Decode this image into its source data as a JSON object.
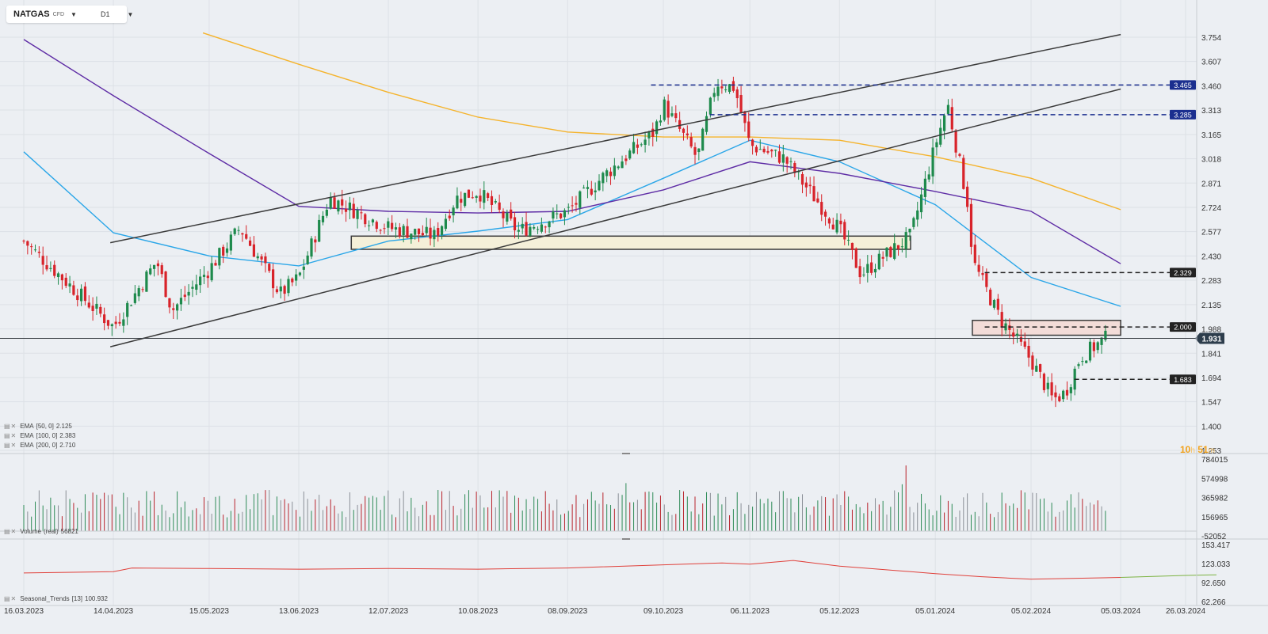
{
  "header": {
    "symbol": "NATGAS",
    "instrument_type": "CFD",
    "timeframe": "D1"
  },
  "countdown": {
    "hours": "10",
    "h_unit": "h",
    "minutes": "51",
    "m_unit": "m"
  },
  "indicators": {
    "ema50": {
      "label": "EMA",
      "params": "[50, 0]",
      "value": "2.125",
      "color": "#2aa6e8"
    },
    "ema100": {
      "label": "EMA",
      "params": "[100, 0]",
      "value": "2.383",
      "color": "#5e2ca5"
    },
    "ema200": {
      "label": "EMA",
      "params": "[200, 0]",
      "value": "2.710",
      "color": "#f5b32b"
    },
    "volume": {
      "label": "Volume",
      "params": "(real)",
      "value": "56821"
    },
    "seasonal": {
      "label": "Seasonal_Trends",
      "params": "[13]",
      "value": "100.932"
    }
  },
  "chart_data": [
    {
      "type": "candlestick",
      "instrument": "NATGAS",
      "timeframe": "D1",
      "ylim": [
        1.253,
        3.754
      ],
      "y_ticks": [
        "3.754",
        "3.607",
        "3.460",
        "3.313",
        "3.165",
        "3.018",
        "2.871",
        "2.724",
        "2.577",
        "2.430",
        "2.283",
        "2.135",
        "1.988",
        "1.841",
        "1.694",
        "1.547",
        "1.400",
        "1.253"
      ],
      "x_ticks": [
        "16.03.2023",
        "14.04.2023",
        "15.05.2023",
        "13.06.2023",
        "12.07.2023",
        "10.08.2023",
        "08.09.2023",
        "09.10.2023",
        "06.11.2023",
        "05.12.2023",
        "05.01.2024",
        "05.02.2024",
        "05.03.2024",
        "26.03.2024"
      ],
      "current_price": "1.931",
      "price_levels": [
        {
          "label": "3.465",
          "value": 3.465,
          "style": "dashed",
          "color": "#1b2f8f"
        },
        {
          "label": "3.285",
          "value": 3.285,
          "style": "dashed",
          "color": "#1b2f8f"
        },
        {
          "label": "2.329",
          "value": 2.329,
          "style": "dashed",
          "color": "#222222"
        },
        {
          "label": "2.000",
          "value": 2.0,
          "style": "dashed",
          "color": "#222222"
        },
        {
          "label": "1.683",
          "value": 1.683,
          "style": "dashed",
          "color": "#222222"
        }
      ],
      "channel": {
        "upper": [
          [
            "13.04.2023",
            2.51
          ],
          [
            "05.03.2024",
            3.77
          ]
        ],
        "lower": [
          [
            "13.04.2023",
            1.88
          ],
          [
            "05.03.2024",
            3.44
          ]
        ]
      },
      "zones": [
        {
          "from": "30.06.2023",
          "to": "28.12.2023",
          "low": 2.47,
          "high": 2.55,
          "color": "#f5f0d9"
        },
        {
          "from": "17.01.2024",
          "to": "05.03.2024",
          "low": 1.95,
          "high": 2.04,
          "color": "#f3dcd8"
        }
      ],
      "close_series_key_points": [
        [
          "16.03.2023",
          2.52
        ],
        [
          "14.04.2023",
          2.0
        ],
        [
          "28.04.2023",
          2.4
        ],
        [
          "03.05.2023",
          2.1
        ],
        [
          "15.05.2023",
          2.35
        ],
        [
          "25.05.2023",
          2.6
        ],
        [
          "07.06.2023",
          2.2
        ],
        [
          "13.06.2023",
          2.3
        ],
        [
          "23.06.2023",
          2.78
        ],
        [
          "12.07.2023",
          2.6
        ],
        [
          "27.07.2023",
          2.55
        ],
        [
          "03.08.2023",
          2.78
        ],
        [
          "10.08.2023",
          2.82
        ],
        [
          "23.08.2023",
          2.58
        ],
        [
          "08.09.2023",
          2.7
        ],
        [
          "20.09.2023",
          2.92
        ],
        [
          "06.10.2023",
          3.18
        ],
        [
          "09.10.2023",
          3.35
        ],
        [
          "20.10.2023",
          3.02
        ],
        [
          "26.10.2023",
          3.48
        ],
        [
          "01.11.2023",
          3.45
        ],
        [
          "06.11.2023",
          3.1
        ],
        [
          "17.11.2023",
          3.02
        ],
        [
          "05.12.2023",
          2.59
        ],
        [
          "12.12.2023",
          2.32
        ],
        [
          "28.12.2023",
          2.55
        ],
        [
          "05.01.2024",
          3.1
        ],
        [
          "09.01.2024",
          3.35
        ],
        [
          "16.01.2024",
          2.7
        ],
        [
          "17.01.2024",
          2.4
        ],
        [
          "26.01.2024",
          2.05
        ],
        [
          "05.02.2024",
          1.8
        ],
        [
          "12.02.2024",
          1.56
        ],
        [
          "16.02.2024",
          1.6
        ],
        [
          "21.02.2024",
          1.82
        ],
        [
          "29.02.2024",
          1.93
        ]
      ],
      "ema_series": [
        {
          "name": "EMA [50, 0]",
          "color": "#2aa6e8",
          "points": [
            [
              "16.03.2023",
              3.06
            ],
            [
              "14.04.2023",
              2.57
            ],
            [
              "15.05.2023",
              2.43
            ],
            [
              "13.06.2023",
              2.37
            ],
            [
              "12.07.2023",
              2.52
            ],
            [
              "10.08.2023",
              2.58
            ],
            [
              "08.09.2023",
              2.65
            ],
            [
              "09.10.2023",
              2.9
            ],
            [
              "06.11.2023",
              3.13
            ],
            [
              "05.12.2023",
              3.0
            ],
            [
              "05.01.2024",
              2.74
            ],
            [
              "05.02.2024",
              2.3
            ],
            [
              "05.03.2024",
              2.125
            ]
          ]
        },
        {
          "name": "EMA [100, 0]",
          "color": "#5e2ca5",
          "points": [
            [
              "16.03.2023",
              3.74
            ],
            [
              "14.04.2023",
              3.4
            ],
            [
              "15.05.2023",
              3.05
            ],
            [
              "13.06.2023",
              2.73
            ],
            [
              "12.07.2023",
              2.7
            ],
            [
              "10.08.2023",
              2.69
            ],
            [
              "08.09.2023",
              2.7
            ],
            [
              "09.10.2023",
              2.83
            ],
            [
              "06.11.2023",
              3.0
            ],
            [
              "05.12.2023",
              2.93
            ],
            [
              "05.01.2024",
              2.82
            ],
            [
              "05.02.2024",
              2.7
            ],
            [
              "05.03.2024",
              2.383
            ]
          ]
        },
        {
          "name": "EMA [200, 0]",
          "color": "#f5b32b",
          "points": [
            [
              "13.05.2023",
              3.78
            ],
            [
              "13.06.2023",
              3.59
            ],
            [
              "12.07.2023",
              3.42
            ],
            [
              "10.08.2023",
              3.27
            ],
            [
              "08.09.2023",
              3.18
            ],
            [
              "09.10.2023",
              3.15
            ],
            [
              "06.11.2023",
              3.15
            ],
            [
              "05.12.2023",
              3.13
            ],
            [
              "05.01.2024",
              3.03
            ],
            [
              "05.02.2024",
              2.9
            ],
            [
              "05.03.2024",
              2.71
            ]
          ]
        }
      ]
    },
    {
      "type": "bar",
      "title": "Volume (real)",
      "ylim": [
        -52052,
        784015
      ],
      "y_ticks": [
        "784015",
        "574998",
        "365982",
        "156965",
        "-52052"
      ],
      "last_value": 56821
    },
    {
      "type": "line",
      "title": "Seasonal_Trends [13]",
      "ylim": [
        62.266,
        153.417
      ],
      "y_ticks": [
        "153.417",
        "123.033",
        "92.650",
        "62.266"
      ],
      "points": [
        [
          "16.03.2023",
          108
        ],
        [
          "14.04.2023",
          110
        ],
        [
          "20.04.2023",
          116
        ],
        [
          "15.05.2023",
          115
        ],
        [
          "13.06.2023",
          114
        ],
        [
          "12.07.2023",
          115
        ],
        [
          "10.08.2023",
          114
        ],
        [
          "08.09.2023",
          116
        ],
        [
          "09.10.2023",
          121
        ],
        [
          "28.10.2023",
          124
        ],
        [
          "06.11.2023",
          122
        ],
        [
          "20.11.2023",
          128
        ],
        [
          "05.12.2023",
          119
        ],
        [
          "05.01.2024",
          107
        ],
        [
          "20.01.2024",
          102
        ],
        [
          "05.02.2024",
          98
        ],
        [
          "05.03.2024",
          100.932
        ],
        [
          "26.03.2024",
          104
        ],
        [
          "05.04.2024",
          105
        ]
      ],
      "color_history": "#e0403a",
      "color_forecast": "#7cb342",
      "last_value": "100.932"
    }
  ]
}
